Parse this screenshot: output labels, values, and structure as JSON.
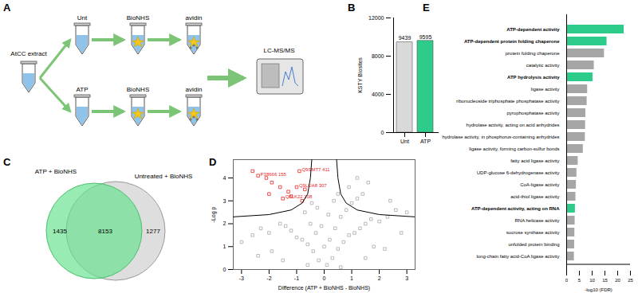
{
  "diagram": {
    "panel": "A",
    "source": "AtCC extract",
    "branches": [
      {
        "label": "Unt",
        "steps": [
          "BioNHS",
          "avidin"
        ]
      },
      {
        "label": "ATP",
        "steps": [
          "BioNHS",
          "avidin"
        ]
      }
    ],
    "output": "LC-MS/MS"
  },
  "venn": {
    "panel": "C",
    "sets": [
      {
        "name": "ATP + BioNHS",
        "color": "#5fe08a",
        "only": 1435
      },
      {
        "name": "Untreated + BioNHS",
        "color": "#c8c8c8",
        "only": 1277
      }
    ],
    "overlap": 8153
  },
  "chart_data": [
    {
      "panel": "B",
      "type": "bar",
      "categories": [
        "Unt",
        "ATP"
      ],
      "values": [
        9439,
        9595
      ],
      "colors": [
        "#d9d9d9",
        "#2ecc8a"
      ],
      "ylabel": "KSTY Biosites",
      "ylim": [
        0,
        12000
      ],
      "yticks": [
        0,
        4000,
        8000,
        12000
      ],
      "data_labels": true
    },
    {
      "panel": "D",
      "type": "scatter",
      "xlabel": "Difference (ATP + BioNHS - BioNHS)",
      "ylabel": "-Log p",
      "xlim": [
        -3.3,
        3.3
      ],
      "xticks": [
        -3,
        -2,
        -1,
        0,
        1,
        2,
        3
      ],
      "ylim": [
        0,
        4.8
      ],
      "yticks": [
        0,
        1,
        2,
        3,
        4
      ],
      "series": [
        {
          "color": "#aaaaaa",
          "marker": "square",
          "x": [
            0.1,
            -0.2,
            0.3,
            -0.4,
            0.5,
            -0.6,
            0.7,
            -0.8,
            0.9,
            -1.0,
            1.1,
            -1.2,
            1.3,
            -1.4,
            1.5,
            -1.6,
            1.7,
            -0.3,
            0.4,
            -0.5,
            0.6,
            -0.7,
            0.8,
            1.0,
            1.2,
            1.4,
            0.9,
            2.0,
            2.3,
            2.6,
            3.0,
            -2.0,
            -2.3,
            -2.6,
            -3.0,
            0.0,
            0.2,
            -0.1,
            0.15,
            -0.25,
            0.35,
            1.8,
            2.2,
            -1.9,
            -2.4,
            1.5,
            -1.5,
            0.6,
            -0.6,
            2.8,
            1.2,
            1.6,
            2.4,
            0.5,
            -0.45
          ],
          "y": [
            0.2,
            0.4,
            0.5,
            0.8,
            0.9,
            1.1,
            1.2,
            1.3,
            1.5,
            1.4,
            1.6,
            1.7,
            1.8,
            1.9,
            2.0,
            2.0,
            2.2,
            1.6,
            1.8,
            2.0,
            2.3,
            2.5,
            2.6,
            2.9,
            3.1,
            3.3,
            3.6,
            2.1,
            2.3,
            2.6,
            2.5,
            1.6,
            1.8,
            1.5,
            1.2,
            1.0,
            1.3,
            1.9,
            2.4,
            2.7,
            3.0,
            1.0,
            0.9,
            0.8,
            0.6,
            0.5,
            0.4,
            0.1,
            0.2,
            1.6,
            4.0,
            3.8,
            3.0,
            3.3,
            2.9
          ]
        },
        {
          "color": "#e8262b",
          "marker": "square",
          "x": [
            -2.6,
            -2.4,
            -2.1,
            -1.9,
            -1.6,
            -1.3,
            -1.0,
            -0.9,
            -1.2,
            -0.8,
            -1.5,
            -2.0,
            -0.7
          ],
          "y": [
            4.3,
            4.1,
            4.0,
            3.8,
            3.6,
            3.4,
            3.6,
            4.3,
            3.2,
            3.0,
            3.1,
            3.3,
            3.5
          ],
          "labels": [
            null,
            "P38666 155",
            null,
            null,
            null,
            null,
            "Q9LUA8 307",
            "Q9SMT7 411",
            null,
            null,
            "Q8LK22 108",
            null,
            null
          ]
        },
        {
          "type": "line",
          "color": "#000000",
          "x": [
            -0.45,
            -0.5,
            -0.6,
            -0.8,
            -1.2,
            -2.0,
            -3.3
          ],
          "y": [
            4.8,
            4.0,
            3.3,
            2.9,
            2.6,
            2.4,
            2.3
          ]
        },
        {
          "type": "line",
          "color": "#000000",
          "x": [
            0.45,
            0.5,
            0.6,
            0.8,
            1.2,
            2.0,
            3.3
          ],
          "y": [
            4.8,
            4.0,
            3.3,
            2.9,
            2.6,
            2.4,
            2.3
          ]
        }
      ]
    },
    {
      "panel": "E",
      "type": "bar",
      "orientation": "horizontal",
      "xlabel": "-log10 (FDR)",
      "categories": [
        "ATP-dependent activity",
        "ATP-dependent protein folding chaperone",
        "protein folding chaperone",
        "catalytic activity",
        "ATP hydrolysis activity",
        "ligase activity",
        "ribonucleoside triphosphate phosphatase activity",
        "pyrophosphatase activity",
        "hydrolase activity, acting on acid anhydrides",
        "hydrolase activity, in phosphorus-containing anhydrides",
        "ligase activity, forming carbon-sulfur bonds",
        "fatty acid ligase activity",
        "UDP-glucose 6-dehydrogenase activity",
        "CoA-ligase activity",
        "acid-thiol ligase activity",
        "ATP-dependent activity, acting on RNA",
        "RNA helicase activity",
        "sucrose synthase activity",
        "unfolded protein binding",
        "long-chain fatty acid-CoA ligase activity"
      ],
      "values": [
        22.5,
        15.8,
        14.8,
        10.8,
        10.3,
        8.2,
        8.0,
        7.5,
        7.4,
        7.3,
        6.5,
        4.5,
        4.0,
        3.8,
        3.6,
        3.4,
        3.3,
        3.2,
        3.1,
        3.0
      ],
      "colors": [
        "#2ecc8a",
        "#2ecc8a",
        "#a6a6a6",
        "#a6a6a6",
        "#2ecc8a",
        "#a6a6a6",
        "#a6a6a6",
        "#a6a6a6",
        "#a6a6a6",
        "#a6a6a6",
        "#a6a6a6",
        "#a6a6a6",
        "#a6a6a6",
        "#a6a6a6",
        "#a6a6a6",
        "#2ecc8a",
        "#a6a6a6",
        "#a6a6a6",
        "#a6a6a6",
        "#a6a6a6"
      ],
      "xlim": [
        0,
        25
      ],
      "xticks": [
        0,
        5,
        10,
        15,
        20,
        25
      ]
    }
  ]
}
